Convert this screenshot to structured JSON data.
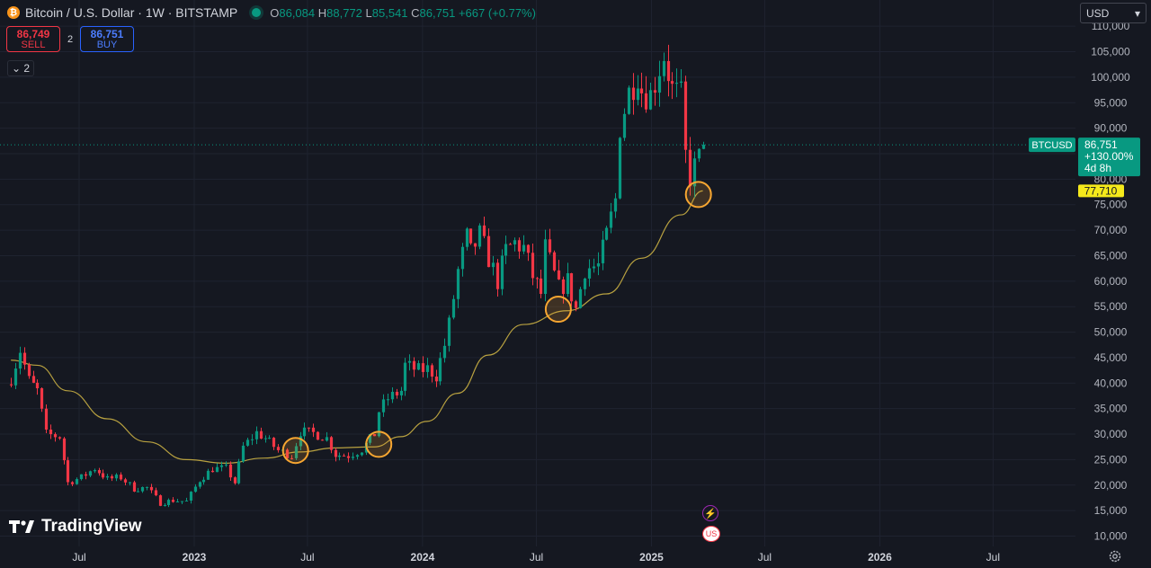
{
  "header": {
    "logo_glyph": "₿",
    "symbol_title": "Bitcoin / U.S. Dollar · 1W · BITSTAMP",
    "open_key": "O",
    "open": "86,084",
    "high_key": "H",
    "high": "88,772",
    "low_key": "L",
    "low": "85,541",
    "close_key": "C",
    "close": "86,751",
    "change": "+667 (+0.77%)"
  },
  "trade": {
    "sell_price": "86,749",
    "sell_label": "SELL",
    "buy_price": "86,751",
    "buy_label": "BUY",
    "spread": "2"
  },
  "indicators_toggle": {
    "chevron": "⌄",
    "count": "2"
  },
  "currency_select": {
    "value": "USD",
    "arrow": "▾"
  },
  "branding": {
    "text": "TradingView"
  },
  "event_markers": {
    "bolt": "⚡",
    "flag": "US"
  },
  "colors": {
    "background": "#151821",
    "up": "#089981",
    "down": "#f23645",
    "moving_average": "#b8a140",
    "highlight_circle": "#f7a631",
    "price_label_bg": "#089981",
    "ma_label_bg": "#f5e91b"
  },
  "chart_data": {
    "type": "candlestick",
    "timeframe": "1W",
    "ylim": [
      9000,
      112000
    ],
    "y_ticks": [
      10000,
      15000,
      20000,
      25000,
      30000,
      35000,
      40000,
      45000,
      50000,
      55000,
      60000,
      65000,
      70000,
      75000,
      80000,
      85000,
      90000,
      95000,
      100000,
      105000,
      110000
    ],
    "y_tick_labels": [
      "10,000",
      "15,000",
      "20,000",
      "25,000",
      "30,000",
      "35,000",
      "40,000",
      "45,000",
      "50,000",
      "55,000",
      "60,000",
      "65,000",
      "70,000",
      "75,000",
      "80,000",
      "85,000",
      "90,000",
      "95,000",
      "100,000",
      "105,000",
      "110,000"
    ],
    "x_ticks": [
      {
        "label": "Jul",
        "date": "2022-07-01"
      },
      {
        "label": "2023",
        "date": "2023-01-01"
      },
      {
        "label": "Jul",
        "date": "2023-07-01"
      },
      {
        "label": "2024",
        "date": "2024-01-01"
      },
      {
        "label": "Jul",
        "date": "2024-07-01"
      },
      {
        "label": "2025",
        "date": "2025-01-01"
      },
      {
        "label": "Jul",
        "date": "2025-07-01"
      },
      {
        "label": "2026",
        "date": "2026-01-01"
      },
      {
        "label": "Jul",
        "date": "2026-07-01"
      }
    ],
    "grid": true,
    "close_path": [
      [
        "2022-03-14",
        41000
      ],
      [
        "2022-03-28",
        46500
      ],
      [
        "2022-04-11",
        40500
      ],
      [
        "2022-04-25",
        38500
      ],
      [
        "2022-05-09",
        30000
      ],
      [
        "2022-05-30",
        29500
      ],
      [
        "2022-06-13",
        20500
      ],
      [
        "2022-07-04",
        21500
      ],
      [
        "2022-07-25",
        23300
      ],
      [
        "2022-08-15",
        21200
      ],
      [
        "2022-09-05",
        21500
      ],
      [
        "2022-09-26",
        19300
      ],
      [
        "2022-10-17",
        19500
      ],
      [
        "2022-11-07",
        16500
      ],
      [
        "2022-11-28",
        17000
      ],
      [
        "2022-12-19",
        16800
      ],
      [
        "2023-01-09",
        21000
      ],
      [
        "2023-01-30",
        23200
      ],
      [
        "2023-02-20",
        23300
      ],
      [
        "2023-03-06",
        20500
      ],
      [
        "2023-03-20",
        27500
      ],
      [
        "2023-04-10",
        30300
      ],
      [
        "2023-04-24",
        29200
      ],
      [
        "2023-05-15",
        26800
      ],
      [
        "2023-06-05",
        25800
      ],
      [
        "2023-06-19",
        30500
      ],
      [
        "2023-07-10",
        30200
      ],
      [
        "2023-07-31",
        29200
      ],
      [
        "2023-08-14",
        26000
      ],
      [
        "2023-09-04",
        25800
      ],
      [
        "2023-09-25",
        27000
      ],
      [
        "2023-10-16",
        30000
      ],
      [
        "2023-10-23",
        34500
      ],
      [
        "2023-11-06",
        37000
      ],
      [
        "2023-11-27",
        38500
      ],
      [
        "2023-12-04",
        43500
      ],
      [
        "2023-12-25",
        42500
      ],
      [
        "2024-01-08",
        42800
      ],
      [
        "2024-01-22",
        41500
      ],
      [
        "2024-02-05",
        47500
      ],
      [
        "2024-02-12",
        51500
      ],
      [
        "2024-02-26",
        62000
      ],
      [
        "2024-03-11",
        68500
      ],
      [
        "2024-03-18",
        65500
      ],
      [
        "2024-04-01",
        69000
      ],
      [
        "2024-04-15",
        64500
      ],
      [
        "2024-04-29",
        60000
      ],
      [
        "2024-05-13",
        66000
      ],
      [
        "2024-05-27",
        67500
      ],
      [
        "2024-06-10",
        66500
      ],
      [
        "2024-06-24",
        61000
      ],
      [
        "2024-07-08",
        57500
      ],
      [
        "2024-07-15",
        66500
      ],
      [
        "2024-08-05",
        58500
      ],
      [
        "2024-08-19",
        60000
      ],
      [
        "2024-09-02",
        54500
      ],
      [
        "2024-09-16",
        62500
      ],
      [
        "2024-10-07",
        63000
      ],
      [
        "2024-10-21",
        69000
      ],
      [
        "2024-11-04",
        76000
      ],
      [
        "2024-11-11",
        90500
      ],
      [
        "2024-11-25",
        97000
      ],
      [
        "2024-12-09",
        101000
      ],
      [
        "2024-12-16",
        97500
      ],
      [
        "2024-12-30",
        96500
      ],
      [
        "2025-01-13",
        102000
      ],
      [
        "2025-01-20",
        104500
      ],
      [
        "2025-02-03",
        97500
      ],
      [
        "2025-02-17",
        96000
      ],
      [
        "2025-02-24",
        84500
      ],
      [
        "2025-03-03",
        80500
      ],
      [
        "2025-03-17",
        84000
      ],
      [
        "2025-03-24",
        86751
      ]
    ],
    "moving_average": {
      "label": "77,710",
      "points": [
        [
          "2022-03-14",
          44500
        ],
        [
          "2022-04-25",
          43500
        ],
        [
          "2022-06-13",
          38500
        ],
        [
          "2022-08-15",
          33000
        ],
        [
          "2022-10-17",
          28500
        ],
        [
          "2022-12-19",
          25000
        ],
        [
          "2023-02-20",
          24300
        ],
        [
          "2023-04-24",
          25300
        ],
        [
          "2023-06-19",
          26500
        ],
        [
          "2023-08-14",
          27300
        ],
        [
          "2023-10-16",
          27500
        ],
        [
          "2023-11-27",
          29500
        ],
        [
          "2024-01-08",
          32500
        ],
        [
          "2024-02-26",
          38000
        ],
        [
          "2024-04-15",
          45500
        ],
        [
          "2024-06-10",
          51500
        ],
        [
          "2024-08-19",
          54200
        ],
        [
          "2024-10-21",
          57500
        ],
        [
          "2024-12-16",
          64500
        ],
        [
          "2025-02-17",
          73000
        ],
        [
          "2025-03-24",
          77710
        ]
      ]
    },
    "last_price": {
      "symbol": "BTCUSD",
      "value": 86751,
      "value_label": "86,751",
      "change_label": "+130.00%",
      "countdown": "4d 8h"
    },
    "highlight_circles": [
      [
        "2023-06-12",
        26800
      ],
      [
        "2023-10-23",
        28000
      ],
      [
        "2024-08-05",
        54500
      ],
      [
        "2025-03-17",
        77000
      ]
    ]
  }
}
